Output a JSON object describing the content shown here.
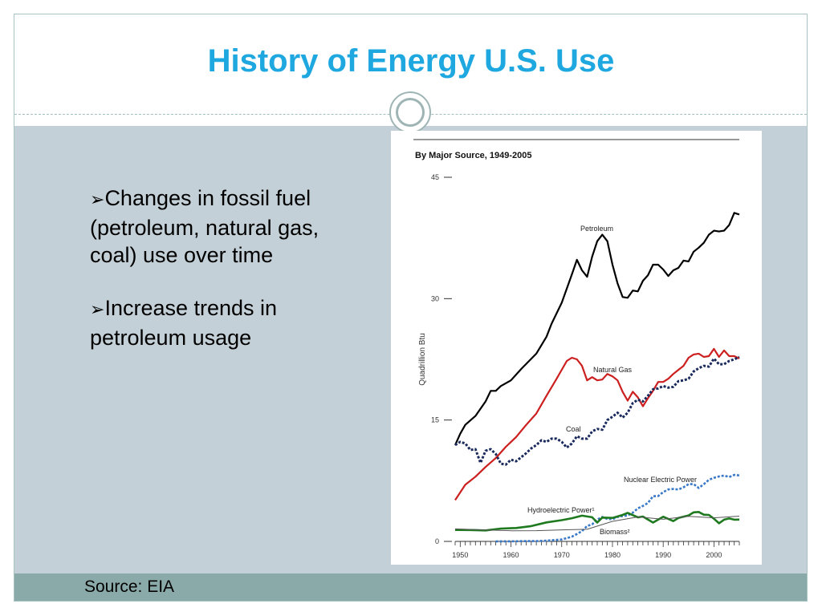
{
  "slide": {
    "title": "History of Energy U.S. Use",
    "bullets": [
      "Changes in fossil fuel (petroleum, natural gas, coal) use over time",
      "Increase trends in petroleum usage"
    ],
    "source": "Source:  EIA"
  },
  "colors": {
    "title": "#1fa8e0",
    "content_bg": "#c4d0d7",
    "footer_bg": "#8aa9a9"
  },
  "chart_data": {
    "type": "line",
    "title": "By Major Source, 1949-2005",
    "xlabel": "",
    "ylabel": "Quadrillion Btu",
    "xlim": [
      1949,
      2005
    ],
    "ylim": [
      0,
      45
    ],
    "yticks": [
      0,
      15,
      30,
      45
    ],
    "xticks": [
      1950,
      1960,
      1970,
      1980,
      1990,
      2000
    ],
    "grid": false,
    "legend": "inline labels",
    "series": [
      {
        "name": "Petroleum",
        "color": "#000000",
        "dash": "solid",
        "x": [
          1949,
          1950,
          1951,
          1953,
          1955,
          1956,
          1957,
          1958,
          1960,
          1962,
          1965,
          1967,
          1968,
          1970,
          1972,
          1973,
          1974,
          1975,
          1976,
          1977,
          1978,
          1979,
          1980,
          1981,
          1982,
          1983,
          1984,
          1985,
          1986,
          1987,
          1988,
          1989,
          1990,
          1991,
          1992,
          1993,
          1994,
          1995,
          1996,
          1997,
          1998,
          1999,
          2000,
          2001,
          2002,
          2003,
          2004,
          2005
        ],
        "y": [
          11.9,
          13.3,
          14.4,
          15.5,
          17.3,
          18.6,
          18.6,
          19.2,
          19.9,
          21.3,
          23.2,
          25.3,
          26.9,
          29.5,
          33.0,
          34.8,
          33.5,
          32.7,
          35.2,
          37.1,
          37.9,
          37.1,
          34.2,
          31.9,
          30.2,
          30.1,
          31.0,
          30.9,
          32.2,
          32.9,
          34.2,
          34.2,
          33.6,
          32.8,
          33.5,
          33.8,
          34.7,
          34.6,
          35.8,
          36.3,
          36.9,
          37.9,
          38.4,
          38.3,
          38.4,
          39.1,
          40.6,
          40.4
        ]
      },
      {
        "name": "Natural Gas",
        "color": "#cc1f1f",
        "dash": "solid",
        "x": [
          1949,
          1951,
          1953,
          1955,
          1957,
          1959,
          1961,
          1963,
          1965,
          1967,
          1969,
          1971,
          1972,
          1973,
          1974,
          1975,
          1976,
          1977,
          1978,
          1979,
          1980,
          1981,
          1982,
          1983,
          1984,
          1985,
          1986,
          1987,
          1988,
          1989,
          1990,
          1991,
          1992,
          1993,
          1994,
          1995,
          1996,
          1997,
          1998,
          1999,
          2000,
          2001,
          2002,
          2003,
          2004,
          2005
        ],
        "y": [
          5.1,
          7.0,
          8.0,
          9.2,
          10.3,
          11.7,
          12.9,
          14.4,
          15.8,
          18.0,
          20.1,
          22.3,
          22.7,
          22.5,
          21.7,
          19.9,
          20.3,
          19.9,
          20.0,
          20.7,
          20.4,
          19.9,
          18.5,
          17.4,
          18.5,
          17.8,
          16.7,
          17.7,
          18.6,
          19.7,
          19.7,
          20.1,
          20.7,
          21.2,
          21.7,
          22.7,
          23.1,
          23.2,
          22.8,
          22.9,
          23.8,
          22.8,
          23.6,
          22.9,
          22.9,
          22.6
        ]
      },
      {
        "name": "Coal",
        "color": "#1b2a5c",
        "dash": "dashed",
        "x": [
          1949,
          1950,
          1951,
          1952,
          1953,
          1954,
          1955,
          1956,
          1957,
          1958,
          1959,
          1960,
          1961,
          1962,
          1963,
          1964,
          1965,
          1966,
          1967,
          1968,
          1969,
          1970,
          1971,
          1972,
          1973,
          1974,
          1975,
          1976,
          1977,
          1978,
          1979,
          1980,
          1981,
          1982,
          1983,
          1984,
          1985,
          1986,
          1987,
          1988,
          1989,
          1990,
          1991,
          1992,
          1993,
          1994,
          1995,
          1996,
          1997,
          1998,
          1999,
          2000,
          2001,
          2002,
          2003,
          2004,
          2005
        ],
        "y": [
          11.9,
          12.3,
          12.1,
          11.3,
          11.4,
          9.7,
          11.2,
          11.4,
          10.8,
          9.6,
          9.5,
          10.1,
          9.9,
          10.4,
          10.9,
          11.5,
          11.9,
          12.5,
          12.3,
          12.7,
          12.7,
          12.3,
          11.6,
          12.1,
          13.0,
          12.7,
          12.7,
          13.6,
          13.9,
          13.8,
          15.0,
          15.4,
          15.9,
          15.3,
          15.9,
          17.1,
          17.5,
          17.3,
          18.0,
          18.8,
          18.9,
          19.2,
          19.0,
          19.1,
          19.8,
          19.9,
          20.1,
          21.0,
          21.4,
          21.7,
          21.6,
          22.6,
          21.9,
          21.9,
          22.3,
          22.5,
          22.8
        ]
      },
      {
        "name": "Nuclear Electric Power",
        "color": "#3a78c8",
        "dash": "dashed",
        "x": [
          1957,
          1960,
          1963,
          1965,
          1967,
          1968,
          1970,
          1971,
          1972,
          1973,
          1974,
          1975,
          1976,
          1977,
          1978,
          1979,
          1980,
          1981,
          1982,
          1983,
          1984,
          1985,
          1986,
          1987,
          1988,
          1989,
          1990,
          1991,
          1992,
          1993,
          1994,
          1995,
          1996,
          1997,
          1998,
          1999,
          2000,
          2001,
          2002,
          2003,
          2004,
          2005
        ],
        "y": [
          0.0,
          0.01,
          0.04,
          0.04,
          0.09,
          0.14,
          0.24,
          0.41,
          0.58,
          0.91,
          1.27,
          1.9,
          2.11,
          2.7,
          3.02,
          2.78,
          2.74,
          3.01,
          3.13,
          3.2,
          3.55,
          4.08,
          4.38,
          4.75,
          5.59,
          5.6,
          6.1,
          6.42,
          6.48,
          6.41,
          6.69,
          7.08,
          7.09,
          6.6,
          7.07,
          7.61,
          7.86,
          8.03,
          8.14,
          7.96,
          8.22,
          8.16
        ]
      },
      {
        "name": "Hydroelectric Power¹",
        "color": "#1f7a1f",
        "dash": "solid",
        "x": [
          1949,
          1952,
          1955,
          1958,
          1961,
          1964,
          1967,
          1970,
          1972,
          1974,
          1976,
          1977,
          1978,
          1980,
          1982,
          1983,
          1985,
          1986,
          1988,
          1990,
          1992,
          1993,
          1995,
          1996,
          1997,
          1998,
          1999,
          2000,
          2001,
          2002,
          2003,
          2004,
          2005
        ],
        "y": [
          1.42,
          1.41,
          1.36,
          1.59,
          1.66,
          1.89,
          2.35,
          2.63,
          2.86,
          3.18,
          2.98,
          2.33,
          2.94,
          2.9,
          3.27,
          3.53,
          2.97,
          3.07,
          2.33,
          3.05,
          2.51,
          2.89,
          3.21,
          3.59,
          3.64,
          3.3,
          3.27,
          2.81,
          2.24,
          2.69,
          2.83,
          2.69,
          2.7
        ]
      },
      {
        "name": "Biomass²",
        "color": "#555555",
        "dash": "solid",
        "x": [
          1949,
          1955,
          1960,
          1965,
          1970,
          1975,
          1980,
          1985,
          1990,
          1995,
          2000,
          2005
        ],
        "y": [
          1.55,
          1.42,
          1.32,
          1.33,
          1.43,
          1.5,
          2.48,
          3.02,
          2.74,
          3.1,
          2.91,
          3.12
        ]
      }
    ]
  }
}
